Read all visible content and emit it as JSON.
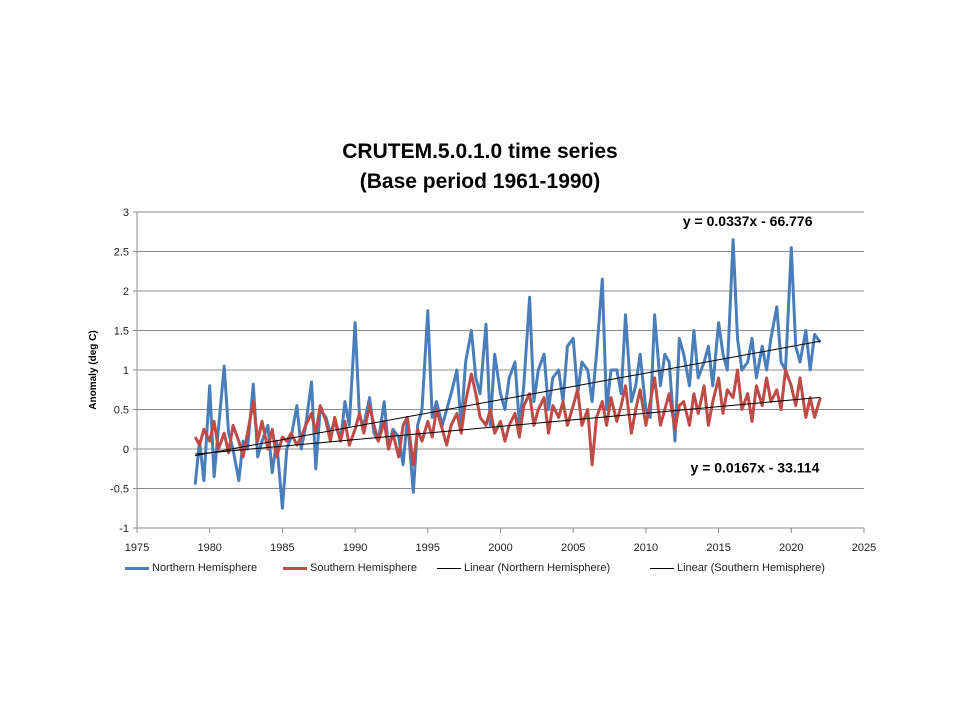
{
  "chart_data": {
    "type": "line",
    "title": "CRUTEM.5.0.1.0 time series",
    "subtitle": "(Base period 1961-1990)",
    "xlabel": "",
    "ylabel": "Anomaly (deg C)",
    "xlim": [
      1975,
      2025
    ],
    "ylim": [
      -1,
      3
    ],
    "x_ticks": [
      1975,
      1980,
      1985,
      1990,
      1995,
      2000,
      2005,
      2010,
      2015,
      2020,
      2025
    ],
    "y_ticks": [
      -1,
      -0.5,
      0,
      0.5,
      1,
      1.5,
      2,
      2.5,
      3
    ],
    "y_tick_labels": [
      "-1",
      "-0.5",
      "0",
      "0.5",
      "1",
      "1.5",
      "2",
      "2.5",
      "3"
    ],
    "grid": true,
    "legend_position": "bottom",
    "series": [
      {
        "name": "Northern Hemisphere",
        "color": "#4a7ebb",
        "x": [
          1979.0,
          1979.3,
          1979.6,
          1980.0,
          1980.3,
          1980.6,
          1981.0,
          1981.3,
          1981.6,
          1982.0,
          1982.3,
          1982.6,
          1983.0,
          1983.3,
          1983.6,
          1984.0,
          1984.3,
          1984.6,
          1985.0,
          1985.3,
          1985.6,
          1986.0,
          1986.3,
          1986.6,
          1987.0,
          1987.3,
          1987.6,
          1988.0,
          1988.3,
          1988.6,
          1989.0,
          1989.3,
          1989.6,
          1990.0,
          1990.3,
          1990.6,
          1991.0,
          1991.3,
          1991.6,
          1992.0,
          1992.3,
          1992.6,
          1993.0,
          1993.3,
          1993.6,
          1994.0,
          1994.3,
          1994.6,
          1995.0,
          1995.3,
          1995.6,
          1996.0,
          1996.3,
          1996.6,
          1997.0,
          1997.3,
          1997.6,
          1998.0,
          1998.3,
          1998.6,
          1999.0,
          1999.3,
          1999.6,
          2000.0,
          2000.3,
          2000.6,
          2001.0,
          2001.3,
          2001.6,
          2002.0,
          2002.3,
          2002.6,
          2003.0,
          2003.3,
          2003.6,
          2004.0,
          2004.3,
          2004.6,
          2005.0,
          2005.3,
          2005.6,
          2006.0,
          2006.3,
          2006.6,
          2007.0,
          2007.3,
          2007.6,
          2008.0,
          2008.3,
          2008.6,
          2009.0,
          2009.3,
          2009.6,
          2010.0,
          2010.3,
          2010.6,
          2011.0,
          2011.3,
          2011.6,
          2012.0,
          2012.3,
          2012.6,
          2013.0,
          2013.3,
          2013.6,
          2014.0,
          2014.3,
          2014.6,
          2015.0,
          2015.3,
          2015.6,
          2016.0,
          2016.3,
          2016.6,
          2017.0,
          2017.3,
          2017.6,
          2018.0,
          2018.3,
          2018.6,
          2019.0,
          2019.3,
          2019.6,
          2020.0,
          2020.3,
          2020.6,
          2021.0,
          2021.3,
          2021.6,
          2022.0
        ],
        "values": [
          -0.45,
          0.1,
          -0.4,
          0.8,
          -0.35,
          0.25,
          1.05,
          0.2,
          0.0,
          -0.4,
          0.1,
          0.0,
          0.82,
          -0.1,
          0.1,
          0.3,
          -0.3,
          0.1,
          -0.75,
          0.0,
          0.15,
          0.55,
          0.0,
          0.3,
          0.85,
          -0.25,
          0.5,
          0.4,
          0.2,
          0.35,
          0.1,
          0.6,
          0.3,
          1.6,
          0.4,
          0.3,
          0.65,
          0.2,
          0.1,
          0.6,
          0.0,
          0.25,
          0.15,
          -0.2,
          0.4,
          -0.55,
          0.3,
          0.5,
          1.75,
          0.4,
          0.6,
          0.3,
          0.5,
          0.7,
          1.0,
          0.3,
          1.1,
          1.5,
          0.9,
          0.7,
          1.58,
          0.3,
          1.2,
          0.7,
          0.5,
          0.9,
          1.1,
          0.3,
          0.8,
          1.92,
          0.6,
          1.0,
          1.2,
          0.5,
          0.9,
          1.0,
          0.6,
          1.3,
          1.4,
          0.7,
          1.1,
          1.0,
          0.6,
          1.2,
          2.15,
          0.5,
          1.0,
          1.0,
          0.7,
          1.7,
          0.6,
          0.8,
          1.2,
          0.5,
          0.4,
          1.7,
          0.8,
          1.2,
          1.1,
          0.1,
          1.4,
          1.2,
          0.8,
          1.5,
          0.9,
          1.1,
          1.3,
          0.8,
          1.6,
          1.2,
          1.0,
          2.65,
          1.4,
          1.0,
          1.1,
          1.4,
          0.9,
          1.3,
          1.0,
          1.4,
          1.8,
          1.1,
          1.0,
          2.55,
          1.3,
          1.1,
          1.5,
          1.0,
          1.45,
          1.35
        ]
      },
      {
        "name": "Southern Hemisphere",
        "color": "#be4b48",
        "x": [
          1979.0,
          1979.3,
          1979.6,
          1980.0,
          1980.3,
          1980.6,
          1981.0,
          1981.3,
          1981.6,
          1982.0,
          1982.3,
          1982.6,
          1983.0,
          1983.3,
          1983.6,
          1984.0,
          1984.3,
          1984.6,
          1985.0,
          1985.3,
          1985.6,
          1986.0,
          1986.3,
          1986.6,
          1987.0,
          1987.3,
          1987.6,
          1988.0,
          1988.3,
          1988.6,
          1989.0,
          1989.3,
          1989.6,
          1990.0,
          1990.3,
          1990.6,
          1991.0,
          1991.3,
          1991.6,
          1992.0,
          1992.3,
          1992.6,
          1993.0,
          1993.3,
          1993.6,
          1994.0,
          1994.3,
          1994.6,
          1995.0,
          1995.3,
          1995.6,
          1996.0,
          1996.3,
          1996.6,
          1997.0,
          1997.3,
          1997.6,
          1998.0,
          1998.3,
          1998.6,
          1999.0,
          1999.3,
          1999.6,
          2000.0,
          2000.3,
          2000.6,
          2001.0,
          2001.3,
          2001.6,
          2002.0,
          2002.3,
          2002.6,
          2003.0,
          2003.3,
          2003.6,
          2004.0,
          2004.3,
          2004.6,
          2005.0,
          2005.3,
          2005.6,
          2006.0,
          2006.3,
          2006.6,
          2007.0,
          2007.3,
          2007.6,
          2008.0,
          2008.3,
          2008.6,
          2009.0,
          2009.3,
          2009.6,
          2010.0,
          2010.3,
          2010.6,
          2011.0,
          2011.3,
          2011.6,
          2012.0,
          2012.3,
          2012.6,
          2013.0,
          2013.3,
          2013.6,
          2014.0,
          2014.3,
          2014.6,
          2015.0,
          2015.3,
          2015.6,
          2016.0,
          2016.3,
          2016.6,
          2017.0,
          2017.3,
          2017.6,
          2018.0,
          2018.3,
          2018.6,
          2019.0,
          2019.3,
          2019.6,
          2020.0,
          2020.3,
          2020.6,
          2021.0,
          2021.3,
          2021.6,
          2022.0
        ],
        "values": [
          0.15,
          0.05,
          0.25,
          0.1,
          0.35,
          0.0,
          0.2,
          -0.05,
          0.3,
          0.1,
          -0.1,
          0.2,
          0.6,
          0.1,
          0.35,
          0.0,
          0.25,
          -0.1,
          0.15,
          0.1,
          0.2,
          0.05,
          0.15,
          0.3,
          0.45,
          0.2,
          0.55,
          0.35,
          0.1,
          0.4,
          0.1,
          0.35,
          0.05,
          0.25,
          0.45,
          0.2,
          0.55,
          0.3,
          0.1,
          0.35,
          0.0,
          0.2,
          -0.1,
          0.3,
          0.4,
          -0.2,
          0.25,
          0.1,
          0.35,
          0.15,
          0.5,
          0.25,
          0.05,
          0.3,
          0.45,
          0.2,
          0.6,
          0.95,
          0.7,
          0.4,
          0.3,
          0.5,
          0.2,
          0.35,
          0.1,
          0.3,
          0.45,
          0.15,
          0.55,
          0.7,
          0.3,
          0.5,
          0.65,
          0.2,
          0.55,
          0.4,
          0.6,
          0.3,
          0.55,
          0.75,
          0.3,
          0.5,
          -0.2,
          0.4,
          0.6,
          0.3,
          0.65,
          0.35,
          0.55,
          0.8,
          0.2,
          0.5,
          0.75,
          0.3,
          0.6,
          0.9,
          0.3,
          0.5,
          0.7,
          0.25,
          0.55,
          0.6,
          0.3,
          0.7,
          0.45,
          0.8,
          0.3,
          0.6,
          0.9,
          0.45,
          0.75,
          0.65,
          1.0,
          0.5,
          0.7,
          0.35,
          0.8,
          0.55,
          0.9,
          0.6,
          0.75,
          0.5,
          1.0,
          0.8,
          0.55,
          0.9,
          0.4,
          0.65,
          0.4,
          0.65
        ]
      },
      {
        "name": "Linear (Northern Hemisphere)",
        "color": "#000000",
        "trend": {
          "slope": 0.0337,
          "intercept": -66.776
        },
        "x": [
          1979,
          2022
        ]
      },
      {
        "name": "Linear (Southern Hemisphere)",
        "color": "#000000",
        "trend": {
          "slope": 0.0167,
          "intercept": -33.114
        },
        "x": [
          1979,
          2022
        ]
      }
    ],
    "annotations": [
      {
        "text": "y = 0.0337x - 66.776",
        "x": 2017,
        "y": 2.82
      },
      {
        "text": "y = 0.0167x - 33.114",
        "x": 2017.5,
        "y": -0.3
      }
    ]
  }
}
